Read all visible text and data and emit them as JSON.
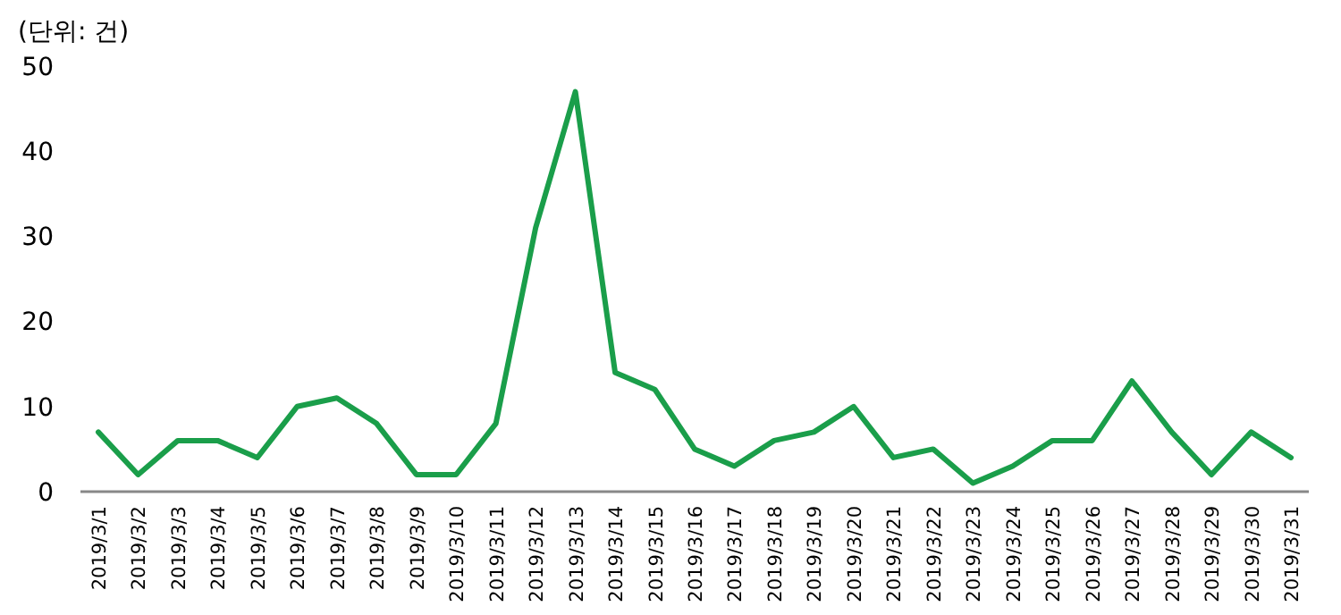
{
  "chart_data": {
    "type": "line",
    "ylabel": "(단위: 건)",
    "categories": [
      "2019/3/1",
      "2019/3/2",
      "2019/3/3",
      "2019/3/4",
      "2019/3/5",
      "2019/3/6",
      "2019/3/7",
      "2019/3/8",
      "2019/3/9",
      "2019/3/10",
      "2019/3/11",
      "2019/3/12",
      "2019/3/13",
      "2019/3/14",
      "2019/3/15",
      "2019/3/16",
      "2019/3/17",
      "2019/3/18",
      "2019/3/19",
      "2019/3/20",
      "2019/3/21",
      "2019/3/22",
      "2019/3/23",
      "2019/3/24",
      "2019/3/25",
      "2019/3/26",
      "2019/3/27",
      "2019/3/28",
      "2019/3/29",
      "2019/3/30",
      "2019/3/31"
    ],
    "series": [
      {
        "color": "#1a9e4a",
        "values": [
          7,
          2,
          6,
          6,
          4,
          10,
          11,
          8,
          2,
          2,
          8,
          31,
          47,
          14,
          12,
          5,
          3,
          6,
          7,
          10,
          4,
          5,
          1,
          3,
          6,
          6,
          13,
          7,
          2,
          7,
          4
        ]
      }
    ],
    "ylim": [
      0,
      50
    ],
    "yticks": [
      0,
      10,
      20,
      30,
      40,
      50
    ],
    "grid": false,
    "marker": "none",
    "line_style": "solid"
  }
}
